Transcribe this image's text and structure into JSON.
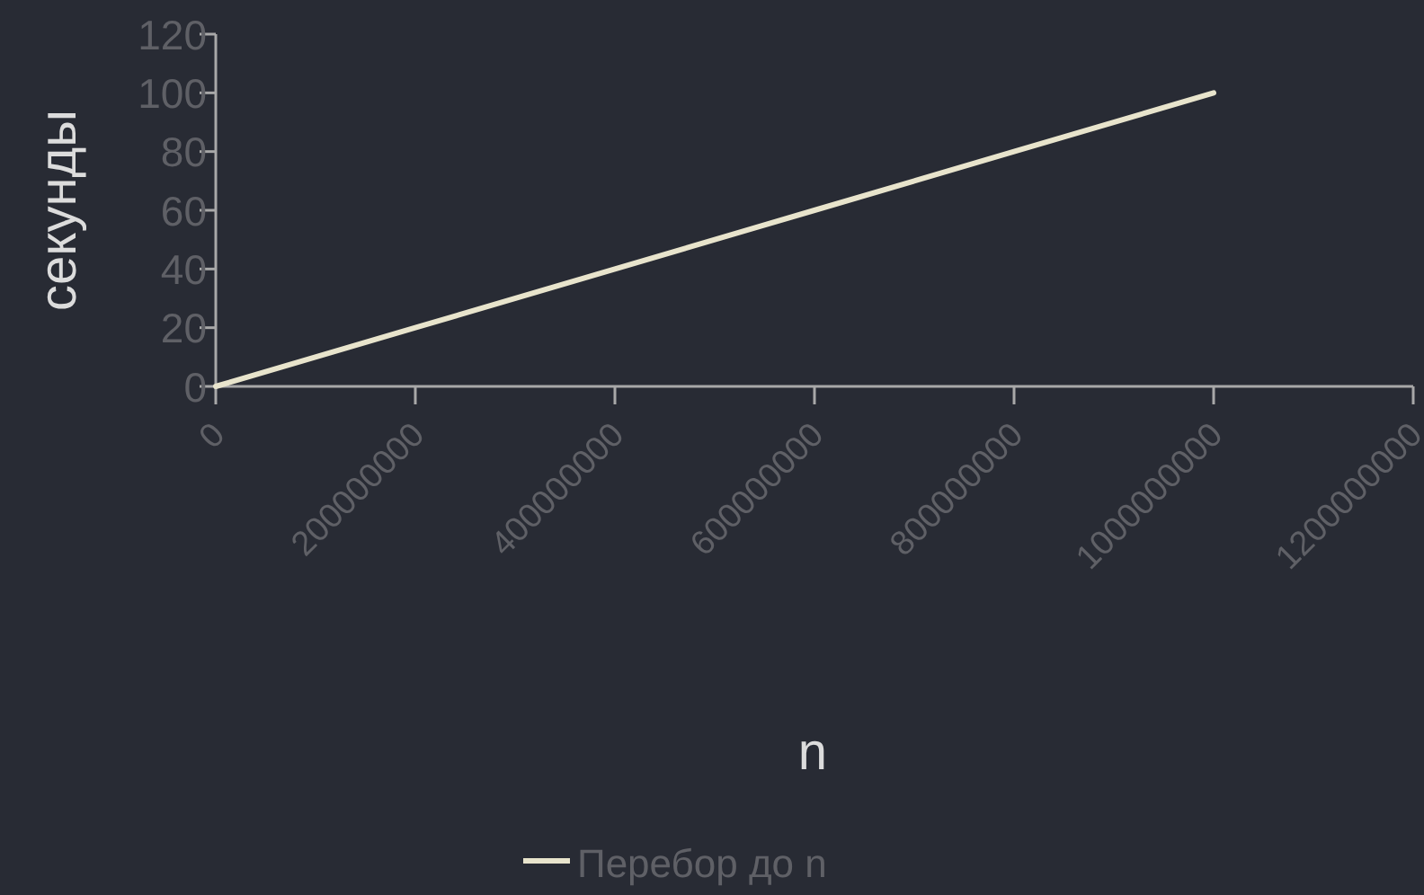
{
  "chart_data": {
    "type": "line",
    "xlabel": "n",
    "ylabel": "секунды",
    "x": [
      0,
      200000000,
      400000000,
      600000000,
      800000000,
      1000000000
    ],
    "series": [
      {
        "name": "Перебор до n",
        "color": "#e8e4cc",
        "values": [
          0,
          20,
          40,
          60,
          80,
          100
        ]
      }
    ],
    "xlim": [
      0,
      1200000000
    ],
    "xticks": [
      0,
      200000000,
      400000000,
      600000000,
      800000000,
      1000000000,
      1200000000
    ],
    "ylim": [
      0,
      120
    ],
    "yticks": [
      0,
      20,
      40,
      60,
      80,
      100,
      120
    ],
    "grid": false,
    "legend": "bottom",
    "marker": "none",
    "line_style": "solid"
  }
}
